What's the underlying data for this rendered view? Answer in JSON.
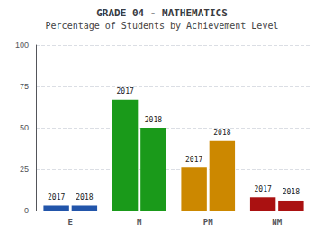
{
  "chart_data": {
    "type": "bar",
    "title": "GRADE 04 - MATHEMATICS",
    "subtitle": "Percentage of Students by Achievement Level",
    "categories": [
      "E",
      "M",
      "PM",
      "NM"
    ],
    "series": [
      {
        "name": "2017",
        "values": [
          3,
          67,
          26,
          8
        ]
      },
      {
        "name": "2018",
        "values": [
          3,
          50,
          42,
          6
        ]
      }
    ],
    "colors": [
      "#2255aa",
      "#1a9a1a",
      "#cc8800",
      "#aa1111"
    ],
    "ylim": [
      0,
      100
    ],
    "yticks": [
      0,
      25,
      50,
      75,
      100
    ],
    "grid": true
  }
}
